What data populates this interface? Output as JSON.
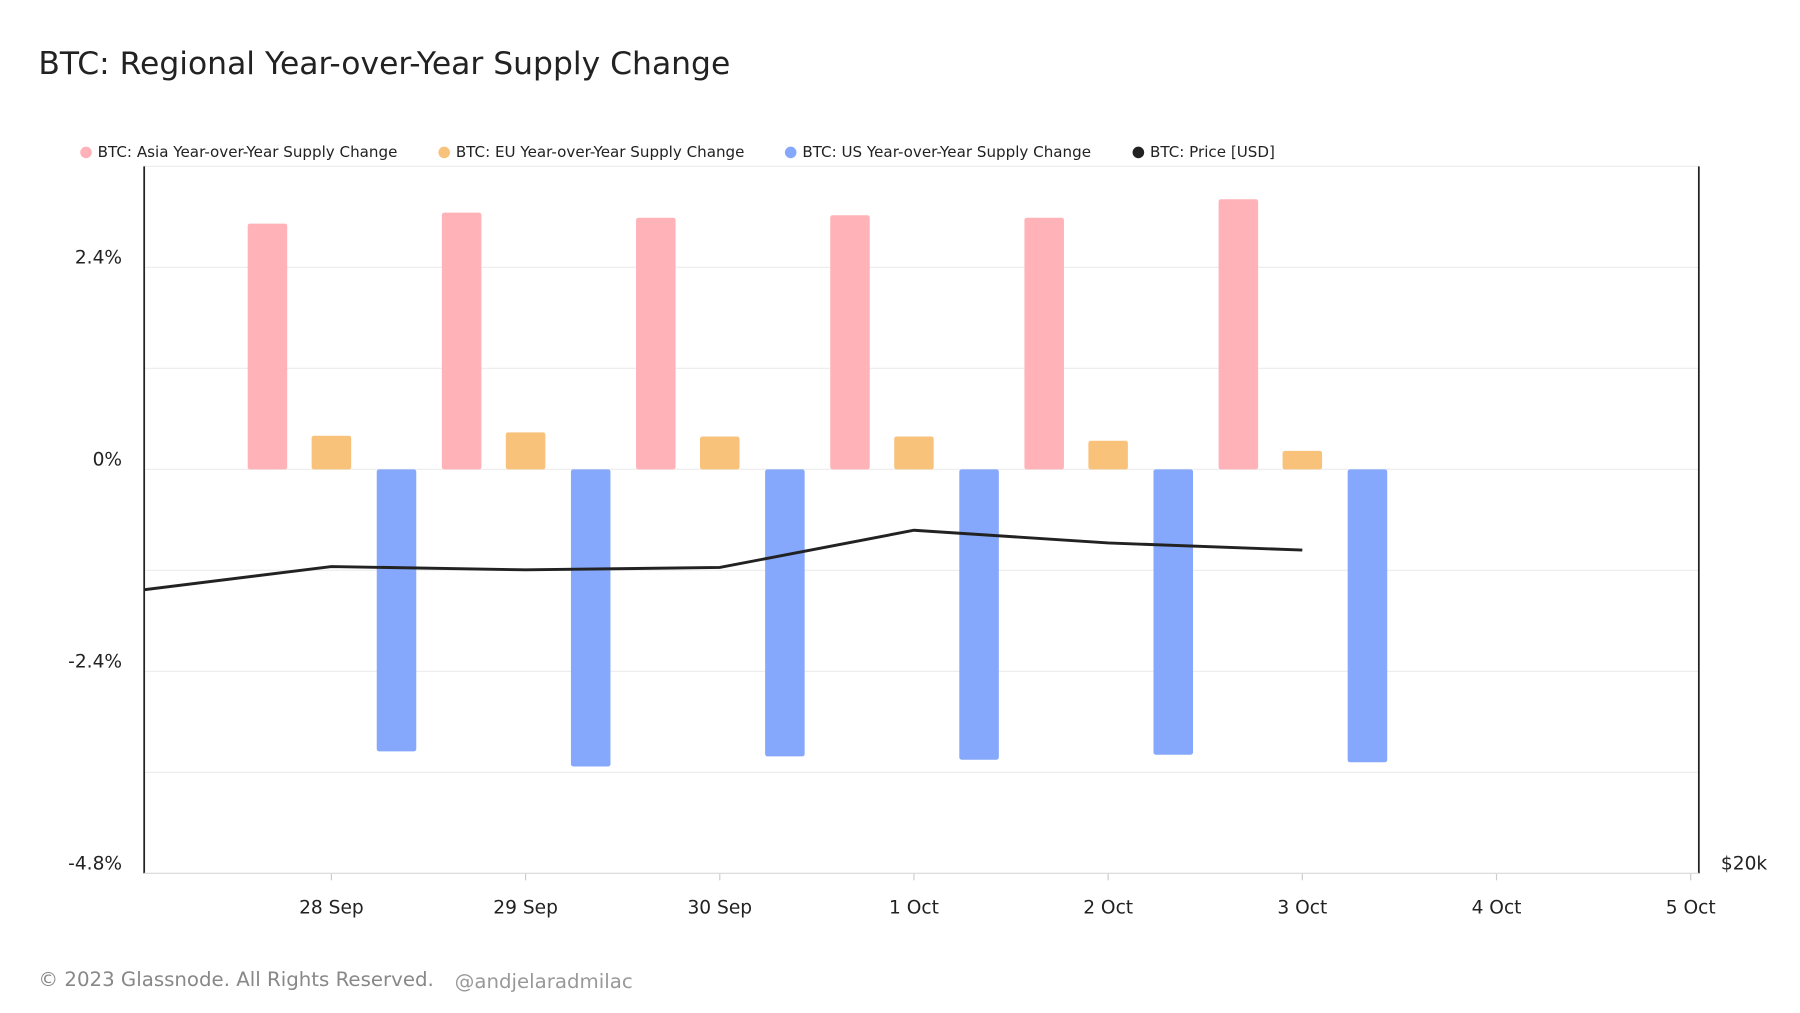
{
  "chart_data": {
    "type": "bar",
    "title": "BTC: Regional Year-over-Year Supply Change",
    "footer": "© 2023 Glassnode. All Rights Reserved.",
    "watermark": "@andjelaradmilac",
    "categories": [
      null,
      "28 Sep",
      "29 Sep",
      "30 Sep",
      "1 Oct",
      "2 Oct",
      "3 Oct",
      "4 Oct",
      "5 Oct"
    ],
    "series": [
      {
        "name": "BTC: Asia Year-over-Year Supply Change",
        "color": "#ffb3b8",
        "values": [
          null,
          2.92,
          3.05,
          2.99,
          3.02,
          2.99,
          3.21,
          null,
          null
        ]
      },
      {
        "name": "BTC: EU Year-over-Year Supply Change",
        "color": "#f9c27b",
        "values": [
          null,
          0.4,
          0.44,
          0.39,
          0.39,
          0.34,
          0.22,
          null,
          null
        ]
      },
      {
        "name": "BTC: US Year-over-Year Supply Change",
        "color": "#85a8fc",
        "values": [
          null,
          -3.35,
          -3.53,
          -3.41,
          -3.45,
          -3.39,
          -3.48,
          null,
          null
        ]
      },
      {
        "name": "BTC: Price [USD]",
        "color": "#222222",
        "type": "line",
        "axis": "y2",
        "values": [
          26000,
          26510,
          26440,
          26490,
          27280,
          27010,
          26860,
          null,
          null
        ]
      }
    ],
    "ylim": [
      -4.8,
      3.6
    ],
    "yticks": [
      {
        "value": -4.8,
        "label": "-4.8%"
      },
      {
        "value": -2.4,
        "label": "-2.4%"
      },
      {
        "value": 0,
        "label": "0%"
      },
      {
        "value": 2.4,
        "label": "2.4%"
      }
    ],
    "y_grid": [
      -3.6,
      -1.2,
      1.2
    ],
    "y2lim": [
      20000,
      35000
    ],
    "y2ticks": [
      {
        "value": 20000,
        "label": "$20k"
      }
    ],
    "grid": true
  }
}
